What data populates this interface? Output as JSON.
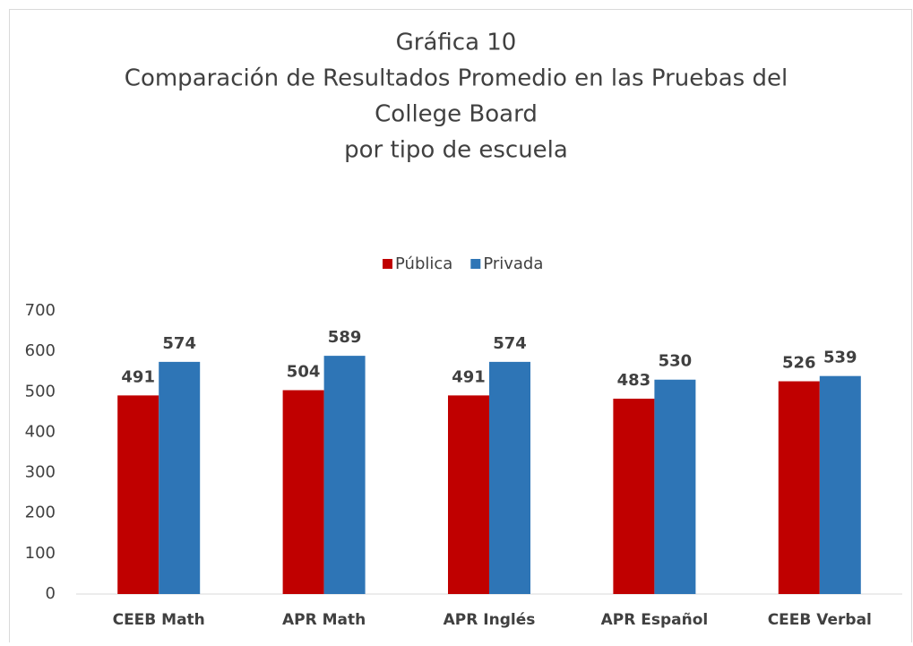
{
  "chart_data": {
    "type": "bar",
    "title": [
      "Gráfica 10",
      "Comparación de Resultados Promedio en las Pruebas del",
      "College Board",
      "por tipo de escuela"
    ],
    "categories": [
      "CEEB Math",
      "APR Math",
      "APR Inglés",
      "APR Español",
      "CEEB Verbal"
    ],
    "series": [
      {
        "name": "Pública",
        "color": "#c00000",
        "values": [
          491,
          504,
          491,
          483,
          526
        ]
      },
      {
        "name": "Privada",
        "color": "#2e75b6",
        "values": [
          574,
          589,
          574,
          530,
          539
        ]
      }
    ],
    "ylim": [
      0,
      700
    ],
    "yticks": [
      0,
      100,
      200,
      300,
      400,
      500,
      600,
      700
    ],
    "grid": false,
    "legend": "top"
  }
}
